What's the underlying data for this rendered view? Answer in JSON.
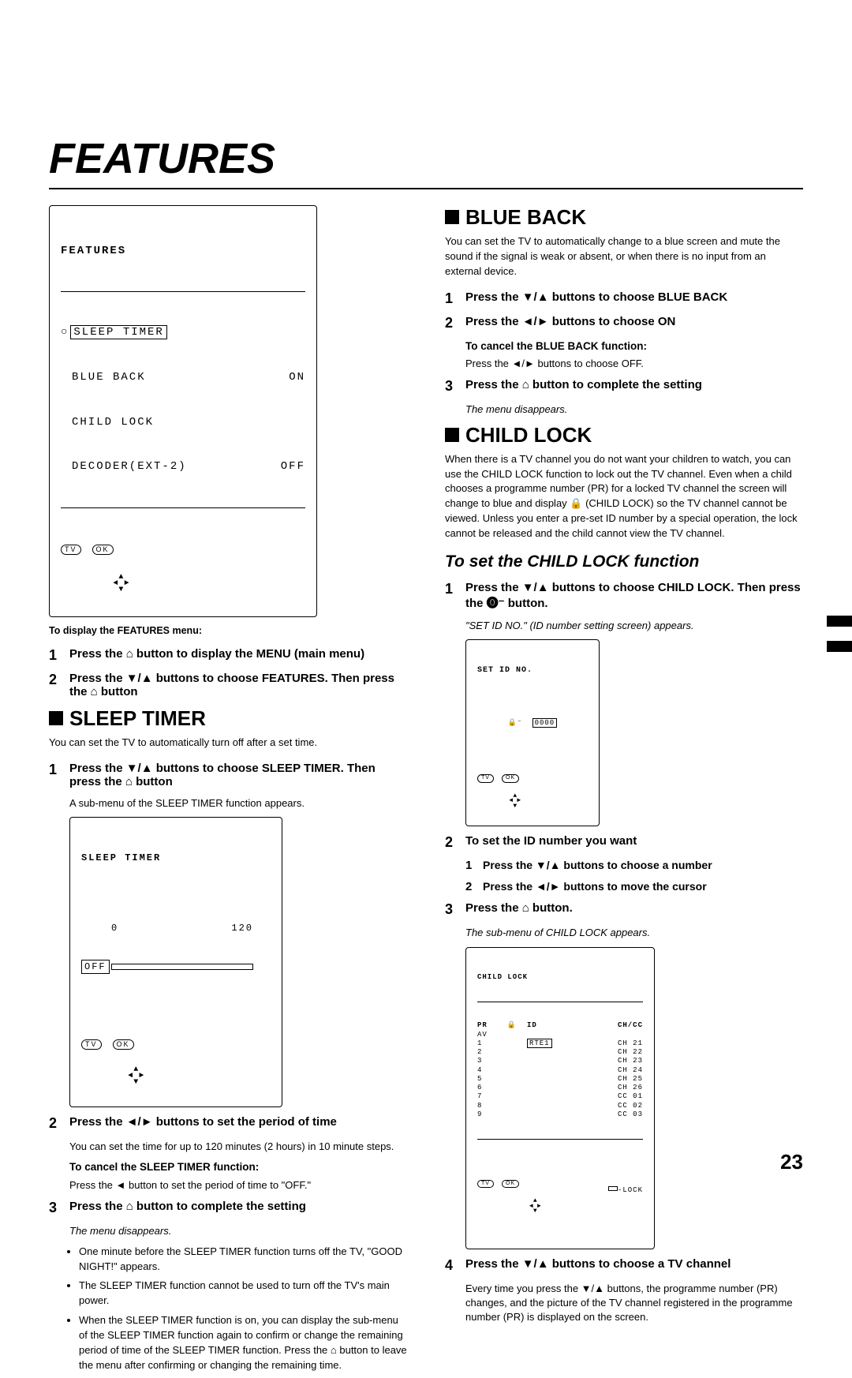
{
  "page_number": "23",
  "title": "FEATURES",
  "features_menu": {
    "heading": "FEATURES",
    "items": [
      {
        "label": "SLEEP TIMER",
        "value": ""
      },
      {
        "label": "BLUE BACK",
        "value": "ON"
      },
      {
        "label": "CHILD LOCK",
        "value": ""
      },
      {
        "label": "DECODER(EXT-2)",
        "value": "OFF"
      }
    ],
    "controls": {
      "tv": "TV",
      "ok": "OK"
    }
  },
  "caption_features": "To display the FEATURES menu:",
  "left": {
    "step1": "Press the ⌂ button to display the MENU (main menu)",
    "step2": "Press the ▼/▲ buttons to choose FEATURES. Then press the ⌂ button",
    "sleep_heading": "SLEEP TIMER",
    "sleep_intro": "You can set the TV to automatically turn off after a set time.",
    "sleep_step1": "Press the ▼/▲ buttons to choose SLEEP TIMER. Then press the ⌂ button",
    "sleep_step1_sub": "A sub-menu of the SLEEP TIMER function appears.",
    "sleep_menu": {
      "heading": "SLEEP TIMER",
      "min": "0",
      "max": "120",
      "off": "OFF"
    },
    "sleep_step2": "Press the ◄/► buttons to set the period of time",
    "sleep_step2_sub": "You can set the time for up to 120 minutes (2 hours) in 10 minute steps.",
    "cancel_heading": "To cancel the SLEEP TIMER function:",
    "cancel_text": "Press the ◄ button to set the period of time to \"OFF.\"",
    "sleep_step3": "Press the ⌂ button to complete the setting",
    "sleep_step3_sub": "The menu disappears.",
    "bullets": [
      "One minute before the SLEEP TIMER function turns off the TV, \"GOOD NIGHT!\" appears.",
      "The SLEEP TIMER function cannot be used to turn off the TV's main power.",
      "When the SLEEP TIMER function is on, you can display the sub-menu of the SLEEP TIMER function again to confirm or change the remaining period of time of the SLEEP TIMER function. Press the  ⌂  button to leave the menu after confirming  or changing the remaining time."
    ]
  },
  "right": {
    "blue_heading": "BLUE BACK",
    "blue_intro": "You can set the TV to automatically change to a blue screen and  mute the sound if the signal is weak or absent, or when there is no input from an external device.",
    "blue_step1": "Press the ▼/▲ buttons to choose BLUE BACK",
    "blue_step2": "Press the ◄/► buttons to choose ON",
    "blue_cancel_h": "To cancel the BLUE BACK function:",
    "blue_cancel_t": "Press the ◄/► buttons to choose OFF.",
    "blue_step3": "Press the ⌂ button to complete the setting",
    "blue_step3_sub": "The menu disappears.",
    "child_heading": "CHILD LOCK",
    "child_intro": "When there is a TV channel you do not want your children to watch, you can use the CHILD LOCK function to lock out the TV channel. Even when a child chooses a programme number (PR) for a locked TV channel the screen will change to blue and display 🔒 (CHILD LOCK) so the TV channel cannot be viewed. Unless you enter a pre-set ID number by a special operation, the lock cannot be released and the child cannot view the TV channel.",
    "child_set_heading": "To set the CHILD LOCK function",
    "child_step1": "Press the ▼/▲ buttons to choose CHILD LOCK. Then press the ⓿⁻  button.",
    "child_step1_sub": "\"SET ID NO.\" (ID number setting screen) appears.",
    "id_menu": {
      "heading": "SET ID NO.",
      "icon": "🔒⁻",
      "value": "0000"
    },
    "child_step2": "To set the ID number you want",
    "child_step2_1": "Press the ▼/▲ buttons to choose a number",
    "child_step2_2": "Press the ◄/► buttons to move the cursor",
    "child_step3": "Press the ⌂ button.",
    "child_step3_sub": "The sub-menu of CHILD LOCK appears.",
    "lock_menu": {
      "heading": "CHILD LOCK",
      "header": {
        "pr": "PR",
        "lock": "🔒",
        "id": "ID",
        "chcc": "CH/CC"
      },
      "rows": [
        {
          "pr": "AV",
          "lock": "",
          "id": "",
          "chcc": ""
        },
        {
          "pr": "1",
          "lock": "",
          "id": "RTE1",
          "chcc": "CH 21"
        },
        {
          "pr": "2",
          "lock": "",
          "id": "",
          "chcc": "CH 22"
        },
        {
          "pr": "3",
          "lock": "",
          "id": "",
          "chcc": "CH 23"
        },
        {
          "pr": "4",
          "lock": "",
          "id": "",
          "chcc": "CH 24"
        },
        {
          "pr": "5",
          "lock": "",
          "id": "",
          "chcc": "CH 25"
        },
        {
          "pr": "6",
          "lock": "",
          "id": "",
          "chcc": "CH 26"
        },
        {
          "pr": "7",
          "lock": "",
          "id": "",
          "chcc": "CC 01"
        },
        {
          "pr": "8",
          "lock": "",
          "id": "",
          "chcc": "CC 02"
        },
        {
          "pr": "9",
          "lock": "",
          "id": "",
          "chcc": "CC 03"
        }
      ],
      "lock_legend": "-LOCK"
    },
    "child_step4": "Press the ▼/▲ buttons to choose a TV channel",
    "child_step4_sub": "Every time you press the ▼/▲ buttons, the programme number (PR) changes, and the picture of the TV channel registered in the programme number (PR) is displayed on the screen."
  }
}
